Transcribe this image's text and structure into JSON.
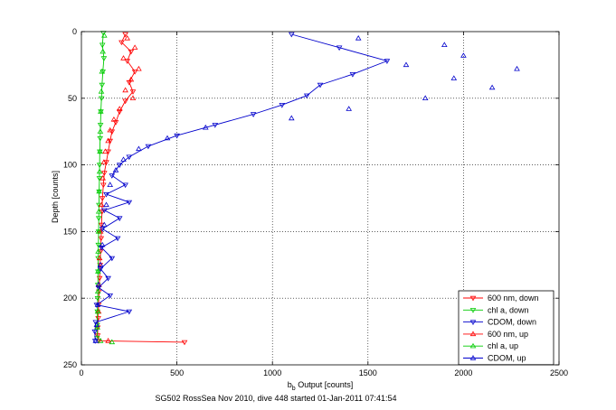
{
  "chart_data": {
    "type": "scatter",
    "title": "",
    "footer": "SG502 RossSea Nov 2010, dive 448 started 01-Jan-2011 07:41:54",
    "xlabel_main": "b",
    "xlabel_sub": "b",
    "xlabel_rest": " Output [counts]",
    "ylabel": "Depth [counts]",
    "xlim": [
      0,
      2500
    ],
    "ylim": [
      0,
      250
    ],
    "y_reversed": true,
    "grid": true,
    "legend_position": "bottom-right",
    "xticks": [
      "0",
      "500",
      "1000",
      "1500",
      "2000",
      "2500"
    ],
    "yticks": [
      "0",
      "50",
      "100",
      "150",
      "200",
      "250"
    ],
    "series": [
      {
        "name": "600 nm, down",
        "color": "#ff0000",
        "marker": "triangle-down",
        "style": "line",
        "points": [
          [
            230,
            2
          ],
          [
            210,
            8
          ],
          [
            260,
            15
          ],
          [
            240,
            22
          ],
          [
            280,
            30
          ],
          [
            250,
            38
          ],
          [
            270,
            45
          ],
          [
            230,
            52
          ],
          [
            200,
            60
          ],
          [
            180,
            68
          ],
          [
            160,
            75
          ],
          [
            150,
            82
          ],
          [
            140,
            90
          ],
          [
            130,
            98
          ],
          [
            120,
            106
          ],
          [
            115,
            115
          ],
          [
            110,
            125
          ],
          [
            108,
            135
          ],
          [
            105,
            145
          ],
          [
            103,
            155
          ],
          [
            100,
            165
          ],
          [
            98,
            175
          ],
          [
            95,
            185
          ],
          [
            92,
            195
          ],
          [
            90,
            205
          ],
          [
            88,
            215
          ],
          [
            85,
            222
          ],
          [
            85,
            228
          ],
          [
            90,
            232
          ],
          [
            540,
            233
          ]
        ]
      },
      {
        "name": "chl a, down",
        "color": "#00cc00",
        "marker": "triangle-down",
        "style": "line",
        "points": [
          [
            115,
            1
          ],
          [
            110,
            10
          ],
          [
            118,
            20
          ],
          [
            112,
            30
          ],
          [
            108,
            40
          ],
          [
            105,
            50
          ],
          [
            102,
            60
          ],
          [
            100,
            70
          ],
          [
            98,
            80
          ],
          [
            96,
            90
          ],
          [
            95,
            100
          ],
          [
            94,
            110
          ],
          [
            93,
            120
          ],
          [
            92,
            130
          ],
          [
            91,
            140
          ],
          [
            90,
            150
          ],
          [
            89,
            160
          ],
          [
            88,
            170
          ],
          [
            87,
            180
          ],
          [
            86,
            190
          ],
          [
            85,
            200
          ],
          [
            84,
            210
          ],
          [
            83,
            220
          ],
          [
            82,
            230
          ]
        ]
      },
      {
        "name": "CDOM, down",
        "color": "#0000cc",
        "marker": "triangle-down",
        "style": "line",
        "points": [
          [
            1100,
            2
          ],
          [
            1350,
            12
          ],
          [
            1600,
            22
          ],
          [
            1420,
            32
          ],
          [
            1250,
            40
          ],
          [
            1180,
            48
          ],
          [
            1050,
            55
          ],
          [
            900,
            62
          ],
          [
            700,
            70
          ],
          [
            500,
            78
          ],
          [
            350,
            86
          ],
          [
            250,
            94
          ],
          [
            200,
            100
          ],
          [
            160,
            108
          ],
          [
            230,
            115
          ],
          [
            130,
            122
          ],
          [
            250,
            128
          ],
          [
            120,
            134
          ],
          [
            200,
            140
          ],
          [
            110,
            148
          ],
          [
            190,
            155
          ],
          [
            105,
            162
          ],
          [
            160,
            170
          ],
          [
            100,
            178
          ],
          [
            140,
            185
          ],
          [
            90,
            192
          ],
          [
            150,
            198
          ],
          [
            80,
            205
          ],
          [
            250,
            210
          ],
          [
            75,
            218
          ],
          [
            70,
            225
          ],
          [
            72,
            232
          ]
        ]
      },
      {
        "name": "600 nm, up",
        "color": "#ff0000",
        "marker": "triangle-up",
        "style": "markers",
        "points": [
          [
            240,
            5
          ],
          [
            280,
            12
          ],
          [
            220,
            20
          ],
          [
            300,
            28
          ],
          [
            260,
            36
          ],
          [
            230,
            44
          ],
          [
            270,
            50
          ],
          [
            200,
            58
          ],
          [
            170,
            66
          ],
          [
            150,
            74
          ],
          [
            140,
            82
          ],
          [
            125,
            90
          ],
          [
            118,
            98
          ],
          [
            112,
            110
          ],
          [
            105,
            130
          ],
          [
            100,
            150
          ],
          [
            95,
            170
          ],
          [
            92,
            190
          ],
          [
            90,
            210
          ],
          [
            140,
            232
          ]
        ]
      },
      {
        "name": "chl a, up",
        "color": "#00cc00",
        "marker": "triangle-up",
        "style": "markers",
        "points": [
          [
            120,
            3
          ],
          [
            112,
            15
          ],
          [
            108,
            30
          ],
          [
            104,
            45
          ],
          [
            101,
            60
          ],
          [
            99,
            75
          ],
          [
            97,
            90
          ],
          [
            95,
            105
          ],
          [
            93,
            120
          ],
          [
            91,
            135
          ],
          [
            90,
            150
          ],
          [
            88,
            165
          ],
          [
            87,
            180
          ],
          [
            86,
            195
          ],
          [
            85,
            210
          ],
          [
            84,
            222
          ],
          [
            100,
            232
          ],
          [
            160,
            233
          ]
        ]
      },
      {
        "name": "CDOM, up",
        "color": "#0000cc",
        "marker": "triangle-up",
        "style": "markers",
        "points": [
          [
            1450,
            5
          ],
          [
            1900,
            10
          ],
          [
            2000,
            18
          ],
          [
            1700,
            25
          ],
          [
            2280,
            28
          ],
          [
            1950,
            35
          ],
          [
            2150,
            42
          ],
          [
            1800,
            50
          ],
          [
            1400,
            58
          ],
          [
            1100,
            65
          ],
          [
            650,
            72
          ],
          [
            450,
            80
          ],
          [
            300,
            88
          ],
          [
            220,
            96
          ],
          [
            180,
            104
          ],
          [
            150,
            115
          ],
          [
            130,
            130
          ],
          [
            120,
            145
          ],
          [
            110,
            160
          ],
          [
            100,
            175
          ],
          [
            90,
            190
          ],
          [
            85,
            205
          ],
          [
            80,
            220
          ],
          [
            75,
            232
          ]
        ]
      }
    ]
  }
}
